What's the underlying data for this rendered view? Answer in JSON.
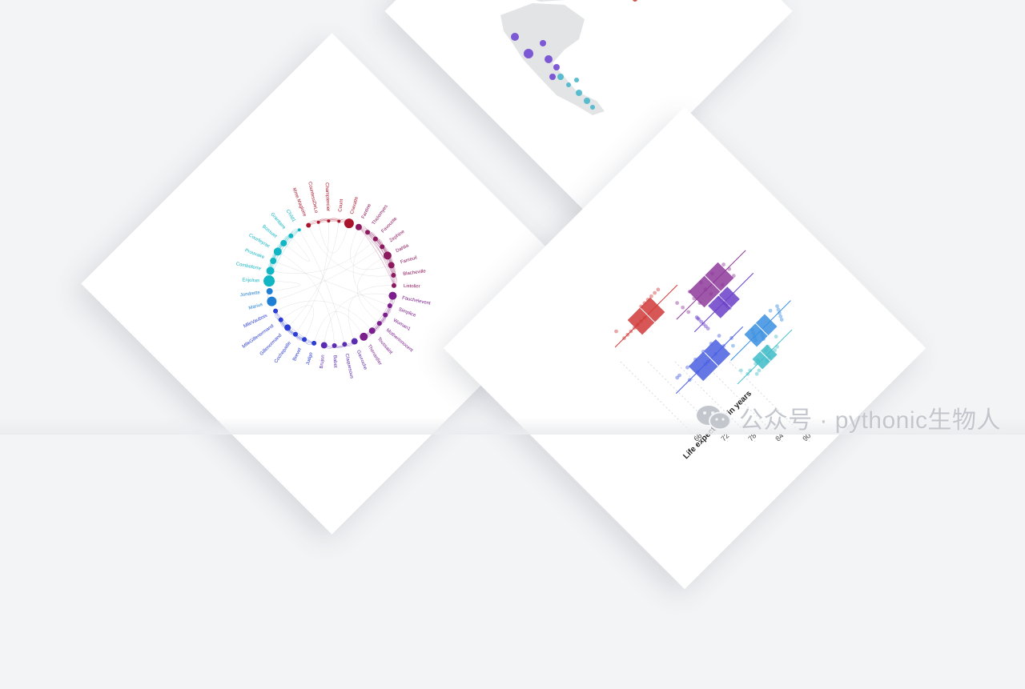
{
  "network": {
    "groups": [
      {
        "color": "#a8142b",
        "names": [
          "Mme.Magloire",
          "CountessDeLo",
          "Champtercier",
          "Count",
          "Cravatte"
        ]
      },
      {
        "color": "#8b1a5f",
        "names": [
          "Fantine",
          "Tholomyes",
          "Favourite",
          "Zephine",
          "Dahlia",
          "Fameuil",
          "Blacheville",
          "Listolier"
        ]
      },
      {
        "color": "#7a1f8c",
        "names": [
          "Fauchelevent",
          "Simplice",
          "Woman1",
          "MotherInnocent",
          "Toussaint",
          "Thenardier"
        ]
      },
      {
        "color": "#5b2db0",
        "names": [
          "Gavroche",
          "Claquesous",
          "Babet",
          "Brujon"
        ]
      },
      {
        "color": "#2c3ed4",
        "names": [
          "Judge",
          "Brevet",
          "Cochepaille",
          "Gillenormand",
          "MlleGillenormand",
          "MlleVaubois"
        ]
      },
      {
        "color": "#1f7fd4",
        "names": [
          "Marius",
          "Jondrette"
        ]
      },
      {
        "color": "#12b5c4",
        "names": [
          "Enjolras",
          "Combeferre",
          "Prouvaire",
          "Courfeyrac",
          "Bossuet",
          "Grantaire",
          "Child1"
        ]
      }
    ]
  },
  "map": {
    "colors": {
      "land": "#e3e4e6",
      "purple": "#6a3fd0",
      "teal": "#3fb4c9",
      "red": "#c0392b"
    }
  },
  "boxplot": {
    "axis_title": "Life expectancy in years",
    "ticks": [
      "66",
      "72",
      "78",
      "84",
      "90"
    ],
    "colors": [
      "#d03a3a",
      "#8e3a9a",
      "#6a3fc8",
      "#4a5fe0",
      "#3a8fe0",
      "#3fbcc8"
    ]
  },
  "watermark": {
    "text": "公众号 · python​ic生物人",
    "display": "公众号 · pythonic生物人",
    "icon": "wechat-icon"
  }
}
